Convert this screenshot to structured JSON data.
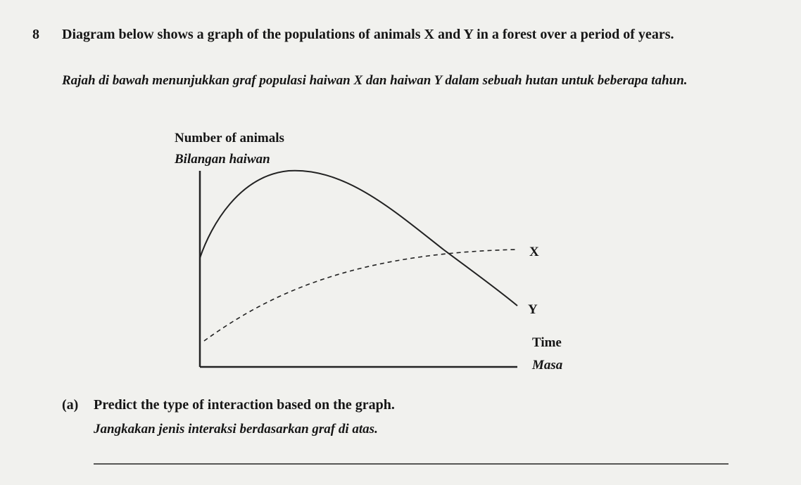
{
  "question": {
    "number": "8",
    "text_en": "Diagram below shows a graph of the populations of animals X and Y in a forest over a period of years.",
    "text_ms": "Rajah di bawah menunjukkan graf populasi haiwan X dan haiwan Y dalam sebuah hutan untuk beberapa tahun."
  },
  "diagram": {
    "y_axis_label_en": "Number of animals",
    "y_axis_label_ms": "Bilangan haiwan",
    "x_axis_label_en": "Time",
    "x_axis_label_ms": "Masa",
    "curves": [
      {
        "label": "X"
      },
      {
        "label": "Y"
      }
    ]
  },
  "part_a": {
    "label": "(a)",
    "text_en": "Predict the type of interaction based on the graph.",
    "text_ms": "Jangkakan jenis interaksi berdasarkan graf di atas."
  }
}
